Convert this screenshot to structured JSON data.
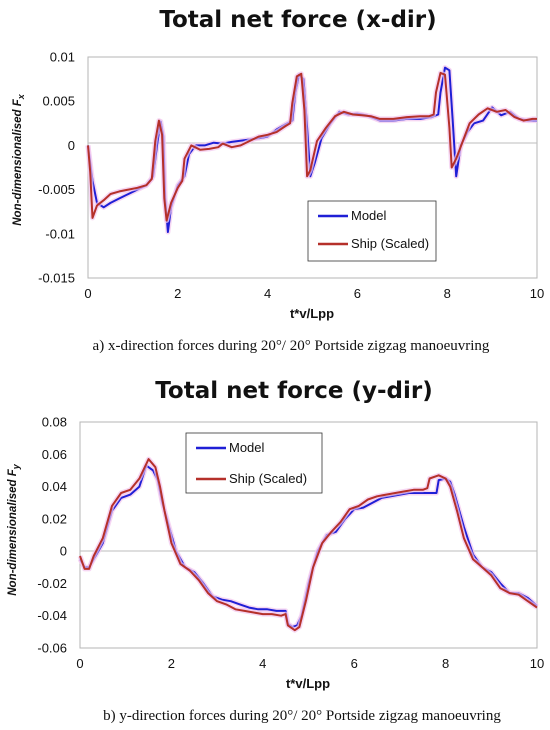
{
  "chart_data": [
    {
      "type": "line",
      "title": "Total net force (x-dir)",
      "xlabel": "t*v/Lpp",
      "ylabel": "Non-dimensionalised F",
      "ylabel_sub": "x",
      "xlim": [
        0,
        10
      ],
      "ylim": [
        -0.015,
        0.01
      ],
      "xticks": [
        "0",
        "2",
        "4",
        "6",
        "8",
        "10"
      ],
      "yticks": [
        "0.01",
        "0.005",
        "0",
        "-0.005",
        "-0.01",
        "-0.015"
      ],
      "xtick_values": [
        0,
        2,
        4,
        6,
        8,
        10
      ],
      "ytick_values": [
        0.01,
        0.005,
        0,
        -0.005,
        -0.01,
        -0.015
      ],
      "grid": false,
      "legend_position": "lower-right",
      "caption": "a) x-direction forces during  20°/ 20° Portside zigzag manoeuvring",
      "series": [
        {
          "name": "Model",
          "color": "#1f1fd6",
          "points": [
            [
              0,
              0
            ],
            [
              0.1,
              -0.004
            ],
            [
              0.2,
              -0.0065
            ],
            [
              0.35,
              -0.007
            ],
            [
              0.5,
              -0.0065
            ],
            [
              0.7,
              -0.006
            ],
            [
              0.9,
              -0.0055
            ],
            [
              1.1,
              -0.005
            ],
            [
              1.3,
              -0.0045
            ],
            [
              1.45,
              -0.0035
            ],
            [
              1.55,
              0.0005
            ],
            [
              1.62,
              0.0027
            ],
            [
              1.68,
              0.001
            ],
            [
              1.72,
              -0.006
            ],
            [
              1.78,
              -0.0098
            ],
            [
              1.85,
              -0.007
            ],
            [
              2.0,
              -0.0045
            ],
            [
              2.15,
              -0.0035
            ],
            [
              2.25,
              -0.001
            ],
            [
              2.4,
              0
            ],
            [
              2.6,
              0
            ],
            [
              2.8,
              0.0003
            ],
            [
              3.0,
              0.0002
            ],
            [
              3.2,
              0.0004
            ],
            [
              3.5,
              0.0006
            ],
            [
              3.8,
              0.0008
            ],
            [
              4.0,
              0.001
            ],
            [
              4.2,
              0.0018
            ],
            [
              4.4,
              0.0024
            ],
            [
              4.55,
              0.0028
            ],
            [
              4.62,
              0.006
            ],
            [
              4.7,
              0.008
            ],
            [
              4.8,
              0.0075
            ],
            [
              4.88,
              0.002
            ],
            [
              4.95,
              -0.0035
            ],
            [
              5.05,
              -0.002
            ],
            [
              5.2,
              0.0008
            ],
            [
              5.4,
              0.0025
            ],
            [
              5.6,
              0.0038
            ],
            [
              5.8,
              0.0035
            ],
            [
              6.0,
              0.0036
            ],
            [
              6.2,
              0.0034
            ],
            [
              6.5,
              0.0028
            ],
            [
              6.8,
              0.0028
            ],
            [
              7.1,
              0.003
            ],
            [
              7.4,
              0.003
            ],
            [
              7.65,
              0.0032
            ],
            [
              7.8,
              0.0035
            ],
            [
              7.85,
              0.006
            ],
            [
              7.95,
              0.0088
            ],
            [
              8.05,
              0.0085
            ],
            [
              8.12,
              0.003
            ],
            [
              8.2,
              -0.0035
            ],
            [
              8.3,
              0
            ],
            [
              8.45,
              0.0015
            ],
            [
              8.6,
              0.0025
            ],
            [
              8.8,
              0.0028
            ],
            [
              9.0,
              0.0043
            ],
            [
              9.2,
              0.0034
            ],
            [
              9.4,
              0.0038
            ],
            [
              9.6,
              0.003
            ],
            [
              9.8,
              0.0028
            ],
            [
              10,
              0.0028
            ]
          ]
        },
        {
          "name": "Ship (Scaled)",
          "color": "#b5302a",
          "points": [
            [
              0,
              0
            ],
            [
              0.05,
              -0.003
            ],
            [
              0.1,
              -0.0082
            ],
            [
              0.2,
              -0.0068
            ],
            [
              0.35,
              -0.0062
            ],
            [
              0.5,
              -0.0055
            ],
            [
              0.7,
              -0.0052
            ],
            [
              0.9,
              -0.005
            ],
            [
              1.1,
              -0.0048
            ],
            [
              1.3,
              -0.0045
            ],
            [
              1.42,
              -0.0038
            ],
            [
              1.5,
              0.0005
            ],
            [
              1.58,
              0.0028
            ],
            [
              1.65,
              0.0012
            ],
            [
              1.7,
              -0.006
            ],
            [
              1.75,
              -0.0085
            ],
            [
              1.85,
              -0.0065
            ],
            [
              2.0,
              -0.0048
            ],
            [
              2.1,
              -0.004
            ],
            [
              2.15,
              -0.0015
            ],
            [
              2.3,
              0
            ],
            [
              2.5,
              -0.0005
            ],
            [
              2.7,
              -0.0004
            ],
            [
              2.9,
              -0.0002
            ],
            [
              3.0,
              0.0002
            ],
            [
              3.2,
              -0.0002
            ],
            [
              3.4,
              0
            ],
            [
              3.6,
              0.0005
            ],
            [
              3.8,
              0.001
            ],
            [
              4.0,
              0.0012
            ],
            [
              4.2,
              0.0015
            ],
            [
              4.4,
              0.0022
            ],
            [
              4.5,
              0.0025
            ],
            [
              4.55,
              0.0048
            ],
            [
              4.65,
              0.0078
            ],
            [
              4.75,
              0.0081
            ],
            [
              4.82,
              0.004
            ],
            [
              4.88,
              -0.0035
            ],
            [
              4.95,
              -0.0028
            ],
            [
              5.1,
              0.0005
            ],
            [
              5.3,
              0.002
            ],
            [
              5.5,
              0.0033
            ],
            [
              5.7,
              0.0038
            ],
            [
              5.9,
              0.0035
            ],
            [
              6.1,
              0.0034
            ],
            [
              6.3,
              0.0033
            ],
            [
              6.5,
              0.003
            ],
            [
              6.8,
              0.003
            ],
            [
              7.1,
              0.0032
            ],
            [
              7.4,
              0.0033
            ],
            [
              7.6,
              0.0033
            ],
            [
              7.7,
              0.0035
            ],
            [
              7.75,
              0.006
            ],
            [
              7.85,
              0.0082
            ],
            [
              7.95,
              0.008
            ],
            [
              8.05,
              0.002
            ],
            [
              8.1,
              -0.0025
            ],
            [
              8.2,
              -0.0015
            ],
            [
              8.35,
              0.0005
            ],
            [
              8.5,
              0.0025
            ],
            [
              8.7,
              0.0035
            ],
            [
              8.9,
              0.0042
            ],
            [
              9.1,
              0.0038
            ],
            [
              9.3,
              0.004
            ],
            [
              9.5,
              0.0032
            ],
            [
              9.7,
              0.0028
            ],
            [
              9.9,
              0.003
            ],
            [
              10,
              0.003
            ]
          ]
        }
      ]
    },
    {
      "type": "line",
      "title": "Total net force (y-dir)",
      "xlabel": "t*v/Lpp",
      "ylabel": "Non-dimensionalised F",
      "ylabel_sub": "y",
      "xlim": [
        0,
        10
      ],
      "ylim": [
        -0.06,
        0.08
      ],
      "xticks": [
        "0",
        "2",
        "4",
        "6",
        "8",
        "10"
      ],
      "yticks": [
        "0.08",
        "0.06",
        "0.04",
        "0.02",
        "0",
        "-0.02",
        "-0.04",
        "-0.06"
      ],
      "xtick_values": [
        0,
        2,
        4,
        6,
        8,
        10
      ],
      "ytick_values": [
        0.08,
        0.06,
        0.04,
        0.02,
        0,
        -0.02,
        -0.04,
        -0.06
      ],
      "grid": false,
      "legend_position": "top-left",
      "caption": "b) y-direction forces during  20°/ 20° Portside zigzag manoeuvring",
      "series": [
        {
          "name": "Model",
          "color": "#1f1fd6",
          "points": [
            [
              0,
              -0.005
            ],
            [
              0.1,
              -0.01
            ],
            [
              0.2,
              -0.01
            ],
            [
              0.3,
              -0.005
            ],
            [
              0.5,
              0.005
            ],
            [
              0.7,
              0.025
            ],
            [
              0.9,
              0.033
            ],
            [
              1.1,
              0.035
            ],
            [
              1.3,
              0.04
            ],
            [
              1.45,
              0.053
            ],
            [
              1.6,
              0.05
            ],
            [
              1.7,
              0.044
            ],
            [
              1.8,
              0.03
            ],
            [
              1.95,
              0.015
            ],
            [
              2.1,
              0
            ],
            [
              2.3,
              -0.01
            ],
            [
              2.5,
              -0.013
            ],
            [
              2.7,
              -0.02
            ],
            [
              2.9,
              -0.028
            ],
            [
              3.1,
              -0.03
            ],
            [
              3.3,
              -0.031
            ],
            [
              3.5,
              -0.033
            ],
            [
              3.7,
              -0.035
            ],
            [
              3.9,
              -0.036
            ],
            [
              4.1,
              -0.036
            ],
            [
              4.3,
              -0.037
            ],
            [
              4.5,
              -0.037
            ],
            [
              4.55,
              -0.045
            ],
            [
              4.65,
              -0.047
            ],
            [
              4.75,
              -0.046
            ],
            [
              4.85,
              -0.04
            ],
            [
              5.0,
              -0.02
            ],
            [
              5.2,
              0
            ],
            [
              5.4,
              0.01
            ],
            [
              5.6,
              0.012
            ],
            [
              5.8,
              0.02
            ],
            [
              6.0,
              0.026
            ],
            [
              6.2,
              0.027
            ],
            [
              6.4,
              0.03
            ],
            [
              6.6,
              0.033
            ],
            [
              6.8,
              0.034
            ],
            [
              7.0,
              0.035
            ],
            [
              7.2,
              0.036
            ],
            [
              7.4,
              0.036
            ],
            [
              7.6,
              0.036
            ],
            [
              7.8,
              0.036
            ],
            [
              7.85,
              0.044
            ],
            [
              8.0,
              0.045
            ],
            [
              8.1,
              0.043
            ],
            [
              8.2,
              0.035
            ],
            [
              8.4,
              0.015
            ],
            [
              8.6,
              -0.002
            ],
            [
              8.8,
              -0.01
            ],
            [
              9.0,
              -0.013
            ],
            [
              9.2,
              -0.02
            ],
            [
              9.4,
              -0.026
            ],
            [
              9.6,
              -0.026
            ],
            [
              9.8,
              -0.029
            ],
            [
              10,
              -0.034
            ]
          ]
        },
        {
          "name": "Ship (Scaled)",
          "color": "#b5302a",
          "points": [
            [
              0,
              -0.003
            ],
            [
              0.1,
              -0.011
            ],
            [
              0.2,
              -0.011
            ],
            [
              0.3,
              -0.003
            ],
            [
              0.5,
              0.008
            ],
            [
              0.7,
              0.028
            ],
            [
              0.9,
              0.036
            ],
            [
              1.1,
              0.038
            ],
            [
              1.3,
              0.045
            ],
            [
              1.5,
              0.057
            ],
            [
              1.65,
              0.052
            ],
            [
              1.75,
              0.04
            ],
            [
              1.85,
              0.025
            ],
            [
              2.0,
              0.005
            ],
            [
              2.2,
              -0.008
            ],
            [
              2.4,
              -0.012
            ],
            [
              2.6,
              -0.018
            ],
            [
              2.8,
              -0.026
            ],
            [
              3.0,
              -0.031
            ],
            [
              3.2,
              -0.033
            ],
            [
              3.4,
              -0.036
            ],
            [
              3.6,
              -0.037
            ],
            [
              3.8,
              -0.038
            ],
            [
              4.0,
              -0.039
            ],
            [
              4.2,
              -0.039
            ],
            [
              4.4,
              -0.04
            ],
            [
              4.5,
              -0.039
            ],
            [
              4.55,
              -0.046
            ],
            [
              4.7,
              -0.049
            ],
            [
              4.8,
              -0.047
            ],
            [
              4.95,
              -0.03
            ],
            [
              5.1,
              -0.01
            ],
            [
              5.3,
              0.005
            ],
            [
              5.5,
              0.012
            ],
            [
              5.7,
              0.018
            ],
            [
              5.9,
              0.026
            ],
            [
              6.1,
              0.028
            ],
            [
              6.3,
              0.032
            ],
            [
              6.5,
              0.034
            ],
            [
              6.7,
              0.035
            ],
            [
              6.9,
              0.036
            ],
            [
              7.1,
              0.037
            ],
            [
              7.3,
              0.038
            ],
            [
              7.5,
              0.038
            ],
            [
              7.6,
              0.039
            ],
            [
              7.65,
              0.045
            ],
            [
              7.85,
              0.047
            ],
            [
              8.0,
              0.045
            ],
            [
              8.1,
              0.04
            ],
            [
              8.25,
              0.025
            ],
            [
              8.4,
              0.008
            ],
            [
              8.6,
              -0.005
            ],
            [
              8.8,
              -0.01
            ],
            [
              9.0,
              -0.015
            ],
            [
              9.2,
              -0.023
            ],
            [
              9.4,
              -0.026
            ],
            [
              9.6,
              -0.027
            ],
            [
              9.8,
              -0.031
            ],
            [
              10,
              -0.035
            ]
          ]
        }
      ]
    }
  ]
}
